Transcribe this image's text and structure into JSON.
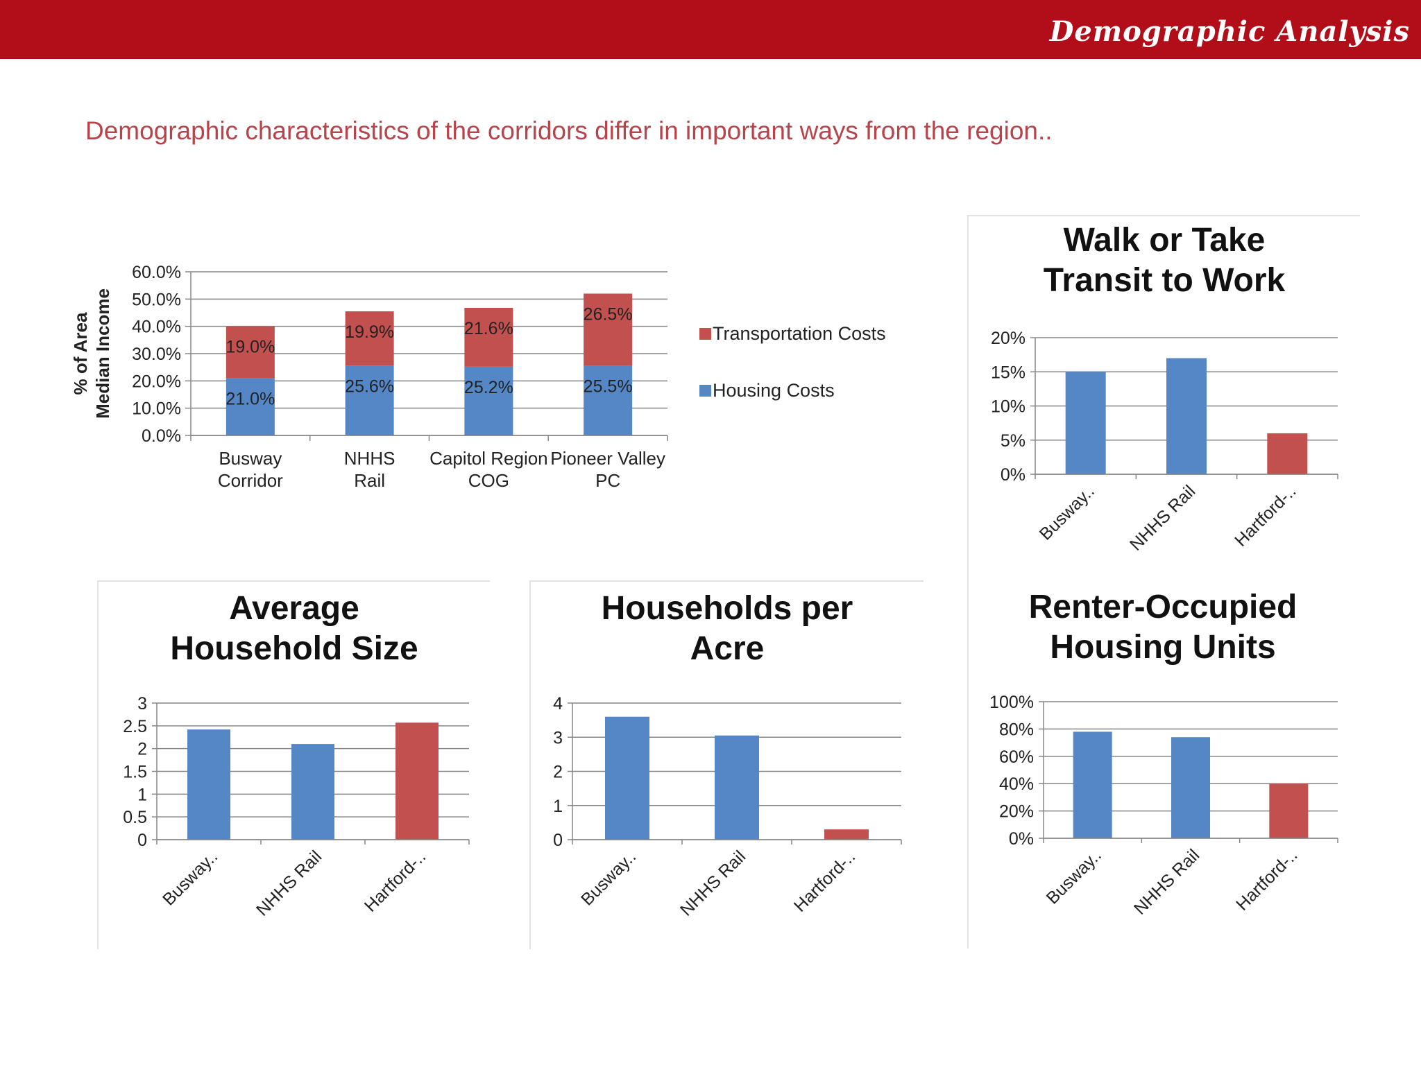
{
  "header": {
    "title": "Demographic Analysis"
  },
  "subtitle": "Demographic characteristics of the corridors differ in important ways from the region..",
  "colors": {
    "blue": "#5586c6",
    "red": "#c2504f",
    "header_red": "#b20e1a",
    "subtitle_red": "#b8434a"
  },
  "chart_data": [
    {
      "type": "bar",
      "stacked": true,
      "title": "",
      "ylabel": "% of Area Median Income",
      "categories": [
        "Busway Corridor",
        "NHHS Rail",
        "Capitol Region COG",
        "Pioneer Valley PC"
      ],
      "series": [
        {
          "name": "Housing Costs",
          "values": [
            21.0,
            25.6,
            25.2,
            25.5
          ],
          "labels": [
            "21.0%",
            "25.6%",
            "25.2%",
            "25.5%"
          ],
          "color": "#5586c6"
        },
        {
          "name": "Transportation Costs",
          "values": [
            19.0,
            19.9,
            21.6,
            26.5
          ],
          "labels": [
            "19.0%",
            "19.9%",
            "21.6%",
            "26.5%"
          ],
          "color": "#c2504f"
        }
      ],
      "ylim": [
        0,
        60
      ],
      "yticks": [
        "0.0%",
        "10.0%",
        "20.0%",
        "30.0%",
        "40.0%",
        "50.0%",
        "60.0%"
      ],
      "legend": "right",
      "grid": true
    },
    {
      "type": "bar",
      "title": "Walk or Take Transit to Work",
      "categories": [
        "Busway..",
        "NHHS Rail",
        "Hartford-.."
      ],
      "values": [
        15,
        17,
        6
      ],
      "colors": [
        "#5586c6",
        "#5586c6",
        "#c2504f"
      ],
      "ylim": [
        0,
        20
      ],
      "yticks": [
        "0%",
        "5%",
        "10%",
        "15%",
        "20%"
      ],
      "grid": true
    },
    {
      "type": "bar",
      "title": "Average Household Size",
      "categories": [
        "Busway..",
        "NHHS Rail",
        "Hartford-.."
      ],
      "values": [
        2.42,
        2.1,
        2.57
      ],
      "colors": [
        "#5586c6",
        "#5586c6",
        "#c2504f"
      ],
      "ylim": [
        0,
        3
      ],
      "yticks": [
        "0",
        "0.5",
        "1",
        "1.5",
        "2",
        "2.5",
        "3"
      ],
      "grid": true
    },
    {
      "type": "bar",
      "title": "Households per Acre",
      "categories": [
        "Busway..",
        "NHHS Rail",
        "Hartford-.."
      ],
      "values": [
        3.6,
        3.05,
        0.3
      ],
      "colors": [
        "#5586c6",
        "#5586c6",
        "#c2504f"
      ],
      "ylim": [
        0,
        4
      ],
      "yticks": [
        "0",
        "1",
        "2",
        "3",
        "4"
      ],
      "grid": true
    },
    {
      "type": "bar",
      "title": "Renter-Occupied Housing Units",
      "categories": [
        "Busway..",
        "NHHS Rail",
        "Hartford-.."
      ],
      "values": [
        78,
        74,
        40
      ],
      "colors": [
        "#5586c6",
        "#5586c6",
        "#c2504f"
      ],
      "ylim": [
        0,
        100
      ],
      "yticks": [
        "0%",
        "20%",
        "40%",
        "60%",
        "80%",
        "100%"
      ],
      "grid": true
    }
  ]
}
